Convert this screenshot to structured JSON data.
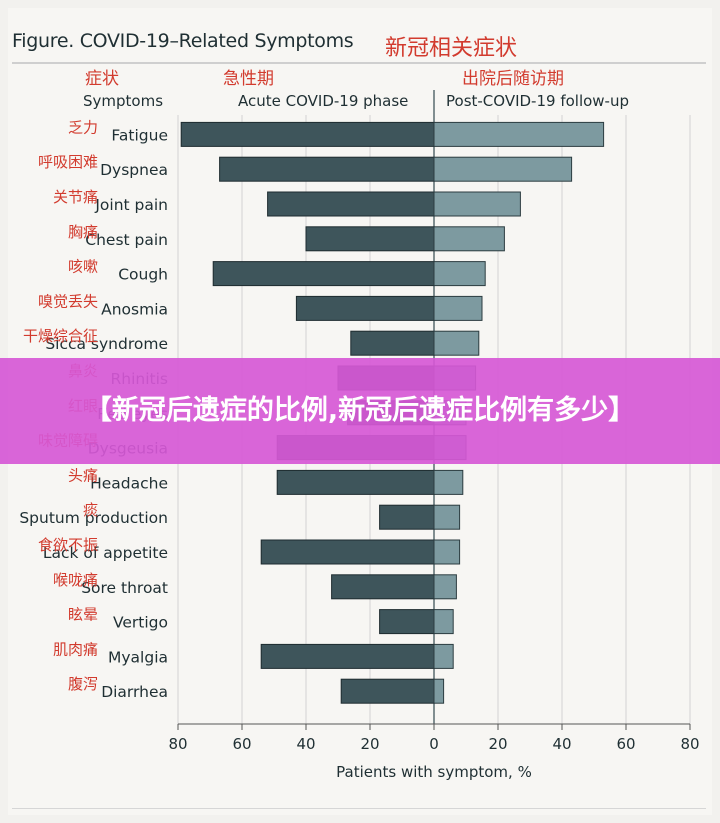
{
  "header": {
    "title": "Figure. COVID-19–Related Symptoms",
    "title_cn": "新冠相关症状"
  },
  "columns": {
    "symptoms_cn": "症状",
    "symptoms": "Symptoms",
    "acute_cn": "急性期",
    "acute": "Acute COVID-19 phase",
    "post_cn": "出院后随访期",
    "post": "Post-COVID-19 follow-up"
  },
  "colors": {
    "acute_bar": "#3e555b",
    "post_bar": "#7d9aa0",
    "chinese_label": "#d23b2e",
    "banner": "#d658d6"
  },
  "chart_data": {
    "type": "bar",
    "orientation": "horizontal",
    "xlabel": "Patients with symptom, %",
    "xticks": [
      "80",
      "60",
      "40",
      "20",
      "0",
      "20",
      "40",
      "60",
      "80"
    ],
    "xlim": [
      -80,
      80
    ],
    "categories": [
      "Fatigue",
      "Dyspnea",
      "Joint pain",
      "Chest pain",
      "Cough",
      "Anosmia",
      "Sicca syndrome",
      "Rhinitis",
      "Red eyes",
      "Dysgeusia",
      "Headache",
      "Sputum production",
      "Lack of appetite",
      "Sore throat",
      "Vertigo",
      "Myalgia",
      "Diarrhea"
    ],
    "categories_cn": [
      "乏力",
      "呼吸困难",
      "关节痛",
      "胸痛",
      "咳嗽",
      "嗅觉丢失",
      "干燥综合征",
      "鼻炎",
      "红眼",
      "味觉障碍",
      "头痛",
      "痰",
      "食欲不振",
      "喉咙痛",
      "眩晕",
      "肌肉痛",
      "腹泻"
    ],
    "series": [
      {
        "name": "Acute COVID-19 phase",
        "values": [
          79,
          67,
          52,
          40,
          69,
          43,
          26,
          30,
          27,
          49,
          49,
          17,
          54,
          32,
          17,
          54,
          29
        ]
      },
      {
        "name": "Post-COVID-19 follow-up",
        "values": [
          53,
          43,
          27,
          22,
          16,
          15,
          14,
          13,
          10,
          10,
          9,
          8,
          8,
          7,
          6,
          6,
          3
        ]
      }
    ],
    "grid": true
  },
  "banner": {
    "text": "【新冠后遗症的比例,新冠后遗症比例有多少】"
  }
}
